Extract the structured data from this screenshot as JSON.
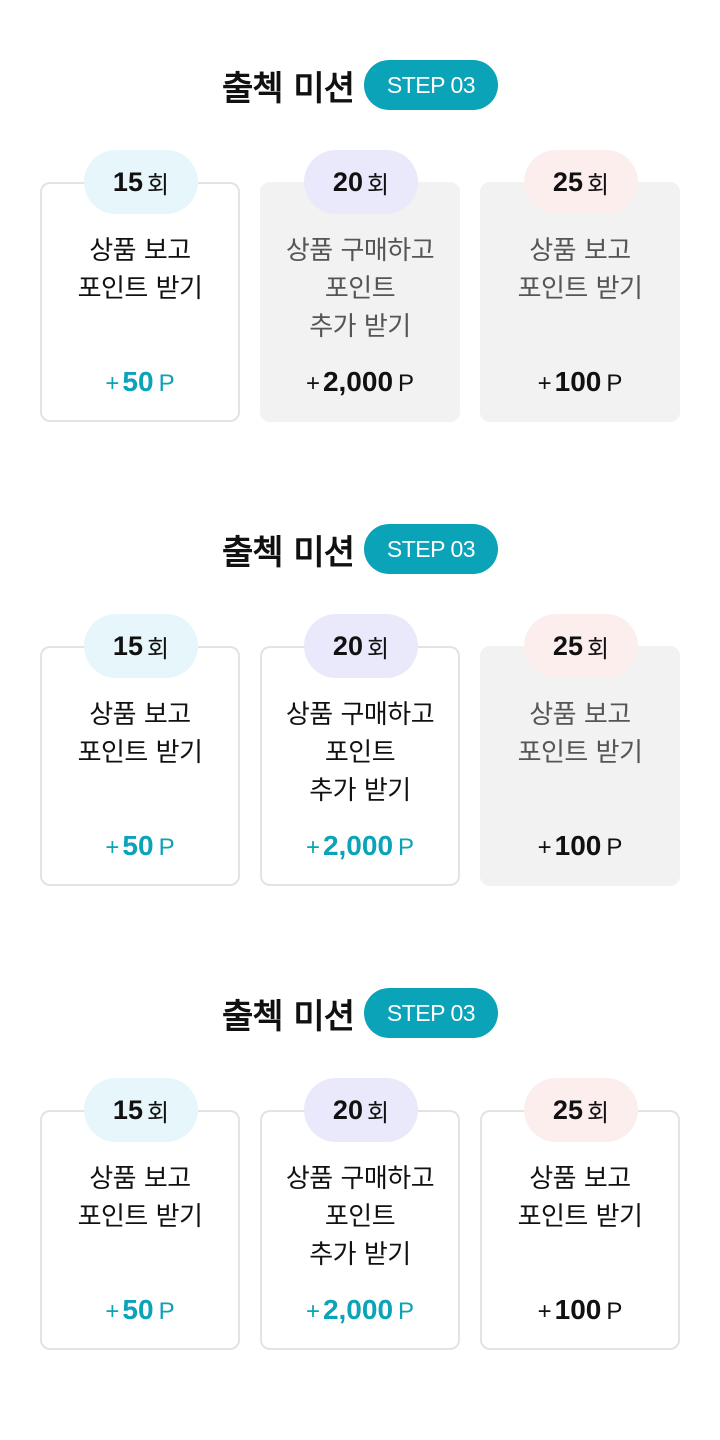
{
  "colors": {
    "accent": "#0aa3b8",
    "inactive_bg": "#f2f2f2",
    "pill_15": "#e6f6fb",
    "pill_20": "#e9e9fb",
    "pill_25": "#fdeeee"
  },
  "sections": [
    {
      "title": "출첵 미션",
      "step": "STEP 03",
      "cards": [
        {
          "count": "15",
          "unit": "회",
          "lines": [
            "상품 보고",
            "포인트 받기",
            ""
          ],
          "plus": "+",
          "value": "50",
          "point": "P",
          "state": "active"
        },
        {
          "count": "20",
          "unit": "회",
          "lines": [
            "상품 구매하고",
            "포인트",
            "추가 받기"
          ],
          "plus": "+",
          "value": "2,000",
          "point": "P",
          "state": "inactive"
        },
        {
          "count": "25",
          "unit": "회",
          "lines": [
            "상품 보고",
            "포인트 받기",
            ""
          ],
          "plus": "+",
          "value": "100",
          "point": "P",
          "state": "inactive"
        }
      ]
    },
    {
      "title": "출첵 미션",
      "step": "STEP 03",
      "cards": [
        {
          "count": "15",
          "unit": "회",
          "lines": [
            "상품 보고",
            "포인트 받기",
            ""
          ],
          "plus": "+",
          "value": "50",
          "point": "P",
          "state": "active"
        },
        {
          "count": "20",
          "unit": "회",
          "lines": [
            "상품 구매하고",
            "포인트",
            "추가 받기"
          ],
          "plus": "+",
          "value": "2,000",
          "point": "P",
          "state": "active"
        },
        {
          "count": "25",
          "unit": "회",
          "lines": [
            "상품 보고",
            "포인트 받기",
            ""
          ],
          "plus": "+",
          "value": "100",
          "point": "P",
          "state": "inactive"
        }
      ]
    },
    {
      "title": "출첵 미션",
      "step": "STEP 03",
      "cards": [
        {
          "count": "15",
          "unit": "회",
          "lines": [
            "상품 보고",
            "포인트 받기",
            ""
          ],
          "plus": "+",
          "value": "50",
          "point": "P",
          "state": "active"
        },
        {
          "count": "20",
          "unit": "회",
          "lines": [
            "상품 구매하고",
            "포인트",
            "추가 받기"
          ],
          "plus": "+",
          "value": "2,000",
          "point": "P",
          "state": "active"
        },
        {
          "count": "25",
          "unit": "회",
          "lines": [
            "상품 보고",
            "포인트 받기",
            ""
          ],
          "plus": "+",
          "value": "100",
          "point": "P",
          "state": "completed"
        }
      ]
    }
  ]
}
